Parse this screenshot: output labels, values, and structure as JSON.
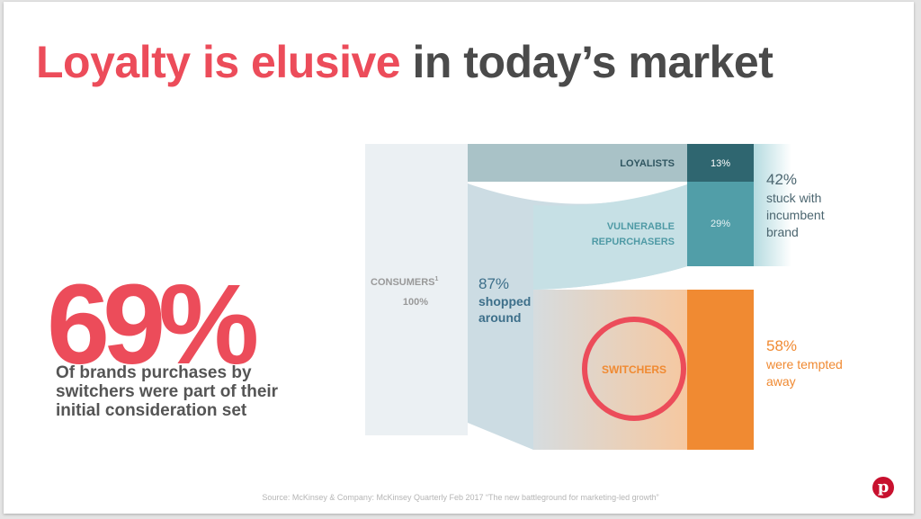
{
  "title": {
    "highlight": "Loyalty is elusive",
    "rest": " in today’s market"
  },
  "stat": {
    "value": "69%",
    "description": "Of brands purchases by switchers were part of their initial consideration set"
  },
  "diagram": {
    "consumers_label": "CONSUMERS",
    "consumers_footnote": "1",
    "consumers_value": "100%",
    "shopped_value": "87%",
    "shopped_line1": "shopped",
    "shopped_line2": "around",
    "loyalists_label": "LOYALISTS",
    "loyalists_value": "13%",
    "vulnerable_line1": "VULNERABLE",
    "vulnerable_line2": "REPURCHASERS",
    "vulnerable_value": "29%",
    "stuck_value": "42%",
    "stuck_line1": "stuck with",
    "stuck_line2": "incumbent",
    "stuck_line3": "brand",
    "switchers_label": "SWITCHERS",
    "tempted_value": "58%",
    "tempted_line1": "were tempted",
    "tempted_line2": "away",
    "colors": {
      "loyal": "#2f6670",
      "vulnerable": "#519ea8",
      "switcher": "#f08a32",
      "highlight": "#ec4c5a"
    }
  },
  "source": "Source: McKinsey &  Company: McKinsey Quarterly Feb 2017 “The new battleground for marketing-led growth”",
  "logo": {
    "icon": "pinterest-icon",
    "letter": "p"
  }
}
